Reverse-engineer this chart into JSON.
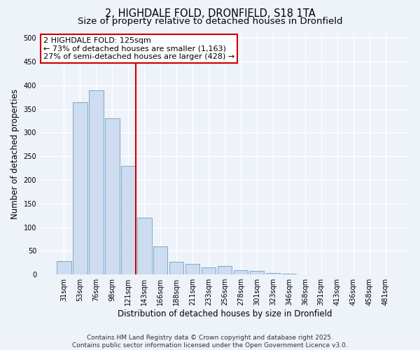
{
  "title": "2, HIGHDALE FOLD, DRONFIELD, S18 1TA",
  "subtitle": "Size of property relative to detached houses in Dronfield",
  "xlabel": "Distribution of detached houses by size in Dronfield",
  "ylabel": "Number of detached properties",
  "categories": [
    "31sqm",
    "53sqm",
    "76sqm",
    "98sqm",
    "121sqm",
    "143sqm",
    "166sqm",
    "188sqm",
    "211sqm",
    "233sqm",
    "256sqm",
    "278sqm",
    "301sqm",
    "323sqm",
    "346sqm",
    "368sqm",
    "391sqm",
    "413sqm",
    "436sqm",
    "458sqm",
    "481sqm"
  ],
  "values": [
    28,
    365,
    390,
    330,
    230,
    120,
    60,
    27,
    22,
    15,
    18,
    9,
    7,
    4,
    2,
    1,
    0,
    0,
    0,
    0,
    1
  ],
  "bar_color": "#cddcee",
  "bar_edge_color": "#7aa8d0",
  "vline_color": "#cc0000",
  "annotation_line1": "2 HIGHDALE FOLD: 125sqm",
  "annotation_line2": "← 73% of detached houses are smaller (1,163)",
  "annotation_line3": "27% of semi-detached houses are larger (428) →",
  "annotation_box_facecolor": "#ffffff",
  "annotation_box_edgecolor": "#cc0000",
  "ylim": [
    0,
    510
  ],
  "yticks": [
    0,
    50,
    100,
    150,
    200,
    250,
    300,
    350,
    400,
    450,
    500
  ],
  "background_color": "#eef2f9",
  "plot_background": "#eef2f9",
  "grid_color": "#ffffff",
  "footer_text": "Contains HM Land Registry data © Crown copyright and database right 2025.\nContains public sector information licensed under the Open Government Licence v3.0.",
  "title_fontsize": 10.5,
  "subtitle_fontsize": 9.5,
  "axis_label_fontsize": 8.5,
  "tick_fontsize": 7,
  "annotation_fontsize": 8,
  "footer_fontsize": 6.5
}
